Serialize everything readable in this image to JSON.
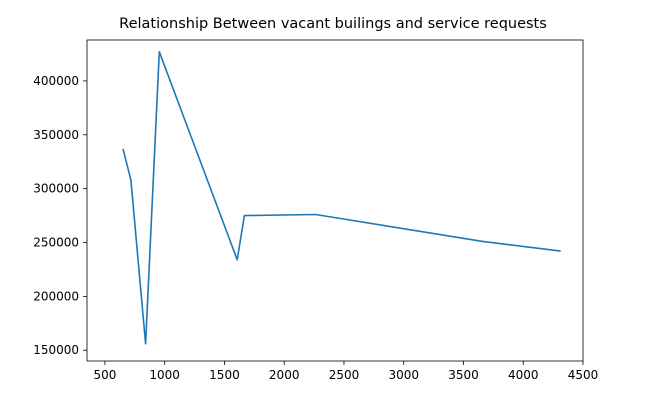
{
  "chart_data": {
    "type": "line",
    "title": "Relationship Between vacant builings and service requests",
    "xlabel": "",
    "ylabel": "",
    "xlim": [
      350,
      4500
    ],
    "ylim": [
      140000,
      438000
    ],
    "x_ticks": [
      500,
      1000,
      1500,
      2000,
      2500,
      3000,
      3500,
      4000,
      4500
    ],
    "y_ticks": [
      150000,
      200000,
      250000,
      300000,
      350000,
      400000
    ],
    "grid": false,
    "series": [
      {
        "color": "#1f77b4",
        "points": [
          [
            651,
            337000
          ],
          [
            717,
            308000
          ],
          [
            840,
            156000
          ],
          [
            955,
            427000
          ],
          [
            1607,
            234000
          ],
          [
            1667,
            275000
          ],
          [
            2262,
            276000
          ],
          [
            3660,
            251000
          ],
          [
            4313,
            242000
          ]
        ]
      }
    ]
  }
}
